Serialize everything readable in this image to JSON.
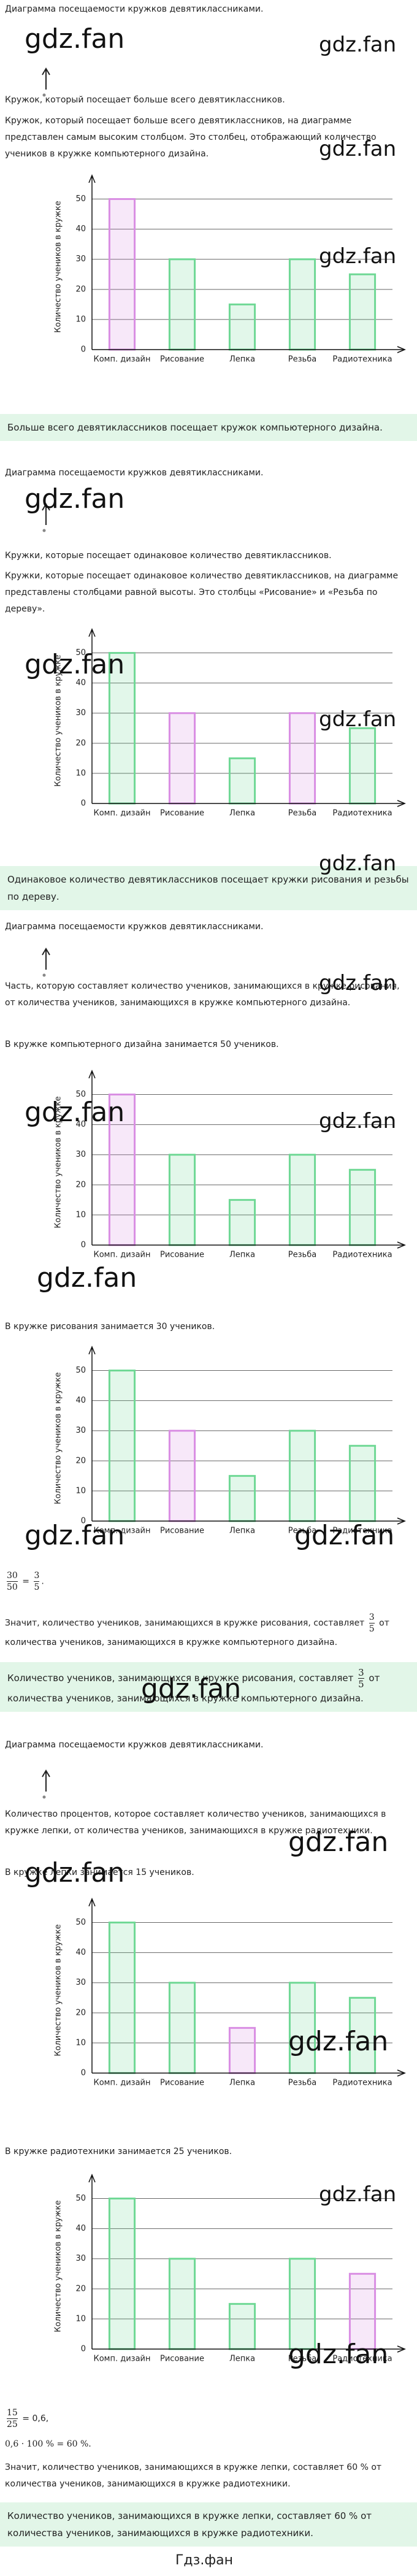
{
  "sections": [
    {
      "title": "Диаграмма посещаемости кружков девятиклассниками.",
      "question": "Кружок, который посещает больше всего девятиклассников.",
      "paragraph": "Кружок, который посещает больше всего девятиклассников, на диаграмме представлен самым высоким столбцом. Это столбец, отображающий количество учеников в кружке компьютерного дизайна.",
      "answer": "Больше всего девятиклассников посещает кружок компьютерного дизайна."
    },
    {
      "title": "Диаграмма посещаемости кружков девятиклассниками.",
      "question": "Кружки, которые посещает одинаковое количество девятиклассников.",
      "paragraph": "Кружки, которые посещает одинаковое количество девятиклассников, на диаграмме представлены столбцами равной высоты. Это столбцы «Рисование» и «Резьба по дереву».",
      "answer": "Одинаковое количество девятиклассников посещает кружки рисования и резьбы по дереву."
    },
    {
      "title": "Диаграмма посещаемости кружков девятиклассниками.",
      "question": "Часть, которую составляет количество учеников, занимающихся в кружке рисования, от количества учеников, занимающихся в кружке компьютерного дизайна.",
      "given_1": "В кружке компьютерного дизайна занимается 50 учеников.",
      "given_2": "В кружке рисования занимается 30 учеников.",
      "equation": {
        "num1": "30",
        "den1": "50",
        "eq": "=",
        "num2": "3",
        "den2": "5",
        "end": "."
      },
      "conclusion": {
        "before": "Значит, количество учеников, занимающихся в кружке рисования, составляет",
        "num": "3",
        "den": "5",
        "after": "от количества учеников, занимающихся в кружке компьютерного дизайна."
      },
      "answer": {
        "before": "Количество учеников, занимающихся в кружке рисования, составляет",
        "num": "3",
        "den": "5",
        "after": "от количества учеников, занимающихся в кружке компьютерного дизайна."
      }
    },
    {
      "title": "Диаграмма посещаемости кружков девятиклассниками.",
      "question": "Количество процентов, которое составляет количество учеников, занимающихся в кружке лепки, от количества учеников, занимающихся в кружке радиотехники.",
      "given_1": "В кружке лепки занимается 15 учеников.",
      "given_2": "В кружке радиотехники занимается 25 учеников.",
      "calc_1": {
        "num": "15",
        "den": "25",
        "rest": "= 0,6,"
      },
      "calc_2": "0,6 · 100 % = 60 %.",
      "conclusion": "Значит, количество учеников, занимающихся в кружке лепки, составляет 60 % от количества учеников, занимающихся в кружке радиотехники.",
      "answer": "Количество учеников, занимающихся в кружке лепки, составляет 60 % от количества учеников, занимающихся в кружке радиотехники."
    }
  ],
  "chart_data": [
    {
      "type": "bar",
      "y_label": "Количество учеников в кружке",
      "categories": [
        "Комп. дизайн",
        "Рисование",
        "Лепка",
        "Резьба",
        "Радиотехника"
      ],
      "values": [
        50,
        30,
        15,
        30,
        25
      ],
      "colors": [
        "#d98ee3",
        "#6fd895",
        "#6fd895",
        "#6fd895",
        "#6fd895"
      ],
      "ylim": [
        0,
        55
      ],
      "yticks": [
        0,
        10,
        20,
        30,
        40,
        50
      ],
      "grid": true
    },
    {
      "type": "bar",
      "y_label": "Количество учеников в кружке",
      "categories": [
        "Комп. дизайн",
        "Рисование",
        "Лепка",
        "Резьба",
        "Радиотехника"
      ],
      "values": [
        50,
        30,
        15,
        30,
        25
      ],
      "colors": [
        "#6fd895",
        "#d98ee3",
        "#6fd895",
        "#d98ee3",
        "#6fd895"
      ],
      "ylim": [
        0,
        55
      ],
      "yticks": [
        0,
        10,
        20,
        30,
        40,
        50
      ],
      "grid": true
    },
    {
      "type": "bar",
      "y_label": "Количество учеников в кружке",
      "categories": [
        "Комп. дизайн",
        "Рисование",
        "Лепка",
        "Резьба",
        "Радиотехника"
      ],
      "values": [
        50,
        30,
        15,
        30,
        25
      ],
      "colors": [
        "#d98ee3",
        "#6fd895",
        "#6fd895",
        "#6fd895",
        "#6fd895"
      ],
      "ylim": [
        0,
        55
      ],
      "yticks": [
        0,
        10,
        20,
        30,
        40,
        50
      ],
      "grid": true
    },
    {
      "type": "bar",
      "y_label": "Количество учеников в кружке",
      "categories": [
        "Комп. дизайн",
        "Рисование",
        "Лепка",
        "Резьба",
        "Радиотехника"
      ],
      "values": [
        50,
        30,
        15,
        30,
        25
      ],
      "colors": [
        "#6fd895",
        "#d98ee3",
        "#6fd895",
        "#6fd895",
        "#6fd895"
      ],
      "ylim": [
        0,
        55
      ],
      "yticks": [
        0,
        10,
        20,
        30,
        40,
        50
      ],
      "grid": true
    },
    {
      "type": "bar",
      "y_label": "Количество учеников в кружке",
      "categories": [
        "Комп. дизайн",
        "Рисование",
        "Лепка",
        "Резьба",
        "Радиотехника"
      ],
      "values": [
        50,
        30,
        15,
        30,
        25
      ],
      "colors": [
        "#6fd895",
        "#6fd895",
        "#d98ee3",
        "#6fd895",
        "#6fd895"
      ],
      "ylim": [
        0,
        55
      ],
      "yticks": [
        0,
        10,
        20,
        30,
        40,
        50
      ],
      "grid": true
    },
    {
      "type": "bar",
      "y_label": "Количество учеников в кружке",
      "categories": [
        "Комп. дизайн",
        "Рисование",
        "Лепка",
        "Резьба",
        "Радиотехника"
      ],
      "values": [
        50,
        30,
        15,
        30,
        25
      ],
      "colors": [
        "#6fd895",
        "#6fd895",
        "#6fd895",
        "#6fd895",
        "#d98ee3"
      ],
      "ylim": [
        0,
        55
      ],
      "yticks": [
        0,
        10,
        20,
        30,
        40,
        50
      ],
      "grid": true
    }
  ],
  "watermarks": [
    "gdz.fan",
    "gdz.fan",
    "gdz.fan",
    "gdz.fan",
    "gdz.fan",
    "gdz.fan",
    "gdz.fan",
    "gdz.fan",
    "gdz.fan",
    "gdz.fan",
    "gdz.fan",
    "gdz.fan",
    "gdz.fan",
    "gdz.fan",
    "gdz.fan",
    "gdz.fan",
    "gdz.fan",
    "gdz.fan",
    "gdz.fan",
    "gdz.fan"
  ],
  "footer": "Гдз.фан"
}
